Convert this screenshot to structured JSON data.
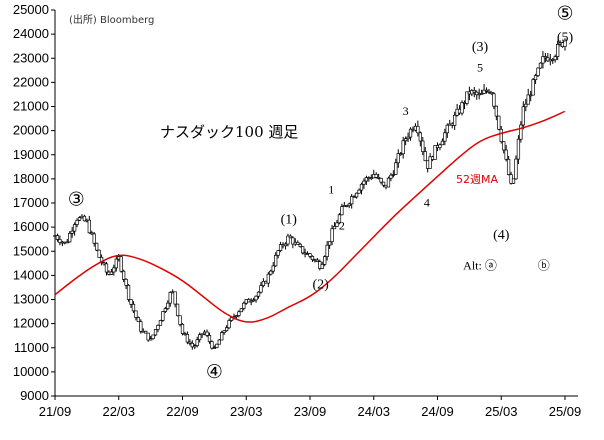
{
  "chart_data": {
    "type": "candlestick",
    "title": "ナスダック100 週足",
    "source": "(出所)  Bloomberg",
    "ylim": [
      9000,
      25000
    ],
    "y_ticks": [
      9000,
      10000,
      11000,
      12000,
      13000,
      14000,
      15000,
      16000,
      17000,
      18000,
      19000,
      20000,
      21000,
      22000,
      23000,
      24000,
      25000
    ],
    "x_tick_labels": [
      "21/09",
      "22/03",
      "22/09",
      "23/03",
      "23/09",
      "24/03",
      "24/09",
      "25/03",
      "25/09"
    ],
    "grid": false,
    "colors": {
      "price": "#000000",
      "ma": "#e00000"
    },
    "price_path": [
      [
        "21/09",
        15650
      ],
      [
        "21/10",
        15300
      ],
      [
        "21/11",
        16400
      ],
      [
        "21/12",
        16200
      ],
      [
        "22/01",
        14900
      ],
      [
        "22/02",
        14000
      ],
      [
        "22/03",
        14700
      ],
      [
        "22/04",
        13000
      ],
      [
        "22/05",
        11800
      ],
      [
        "22/06",
        11300
      ],
      [
        "22/07",
        12300
      ],
      [
        "22/08",
        13400
      ],
      [
        "22/09",
        11600
      ],
      [
        "22/10",
        11000
      ],
      [
        "22/11",
        11700
      ],
      [
        "22/12",
        10900
      ],
      [
        "23/01",
        11800
      ],
      [
        "23/02",
        12400
      ],
      [
        "23/03",
        12900
      ],
      [
        "23/04",
        13200
      ],
      [
        "23/05",
        13900
      ],
      [
        "23/06",
        15000
      ],
      [
        "23/07",
        15600
      ],
      [
        "23/08",
        15100
      ],
      [
        "23/09",
        14800
      ],
      [
        "23/10",
        14400
      ],
      [
        "23/11",
        15700
      ],
      [
        "23/12",
        16700
      ],
      [
        "24/01",
        17300
      ],
      [
        "24/02",
        17900
      ],
      [
        "24/03",
        18200
      ],
      [
        "24/04",
        17600
      ],
      [
        "24/05",
        18500
      ],
      [
        "24/06",
        19700
      ],
      [
        "24/07",
        20400
      ],
      [
        "24/08",
        18500
      ],
      [
        "24/09",
        19400
      ],
      [
        "24/10",
        20100
      ],
      [
        "24/11",
        20800
      ],
      [
        "24/12",
        21600
      ],
      [
        "25/01",
        21400
      ],
      [
        "25/02",
        21800
      ],
      [
        "25/03",
        19700
      ],
      [
        "25/04",
        17500
      ],
      [
        "25/05",
        20800
      ],
      [
        "25/06",
        21900
      ],
      [
        "25/07",
        23000
      ],
      [
        "25/08",
        23200
      ],
      [
        "25/09",
        23800
      ]
    ],
    "ma_series": {
      "name": "52週MA",
      "points": [
        [
          "21/09",
          13200
        ],
        [
          "21/11",
          13900
        ],
        [
          "22/01",
          14500
        ],
        [
          "22/03",
          14900
        ],
        [
          "22/05",
          14700
        ],
        [
          "22/07",
          14300
        ],
        [
          "22/09",
          13800
        ],
        [
          "22/11",
          13100
        ],
        [
          "23/01",
          12400
        ],
        [
          "23/03",
          12000
        ],
        [
          "23/05",
          12200
        ],
        [
          "23/07",
          12700
        ],
        [
          "23/09",
          13100
        ],
        [
          "23/11",
          13800
        ],
        [
          "24/01",
          14700
        ],
        [
          "24/03",
          15600
        ],
        [
          "24/05",
          16500
        ],
        [
          "24/07",
          17300
        ],
        [
          "24/09",
          18100
        ],
        [
          "24/11",
          18900
        ],
        [
          "25/01",
          19600
        ],
        [
          "25/03",
          19900
        ],
        [
          "25/05",
          20100
        ],
        [
          "25/07",
          20400
        ],
        [
          "25/09",
          20800
        ]
      ]
    },
    "annotations": [
      {
        "text": "③",
        "at": [
          "21/11",
          16900
        ],
        "size": 19
      },
      {
        "text": "④",
        "at": [
          "22/12",
          9750
        ],
        "size": 19
      },
      {
        "text": "⑤",
        "at": [
          "25/09",
          24600
        ],
        "size": 19
      },
      {
        "text": "(1)",
        "at": [
          "23/07",
          16150
        ],
        "size": 14
      },
      {
        "text": "(2)",
        "at": [
          "23/10",
          13450
        ],
        "size": 14
      },
      {
        "text": "(3)",
        "at": [
          "25/01",
          23300
        ],
        "size": 14
      },
      {
        "text": "(4)",
        "at": [
          "25/03",
          15500
        ],
        "size": 14
      },
      {
        "text": "(5)",
        "at": [
          "25/09",
          23700
        ],
        "size": 14
      },
      {
        "text": "1",
        "at": [
          "23/11",
          17400
        ],
        "size": 12
      },
      {
        "text": "2",
        "at": [
          "23/12",
          15900
        ],
        "size": 12
      },
      {
        "text": "3",
        "at": [
          "24/06",
          20650
        ],
        "size": 12
      },
      {
        "text": "4",
        "at": [
          "24/08",
          16850
        ],
        "size": 12
      },
      {
        "text": "5",
        "at": [
          "25/01",
          22450
        ],
        "size": 12
      },
      {
        "text": "Alt:  ⓐ",
        "at": [
          "25/01",
          14250
        ],
        "size": 12
      },
      {
        "text": "ⓑ",
        "at": [
          "25/07",
          14250
        ],
        "size": 12
      }
    ]
  }
}
